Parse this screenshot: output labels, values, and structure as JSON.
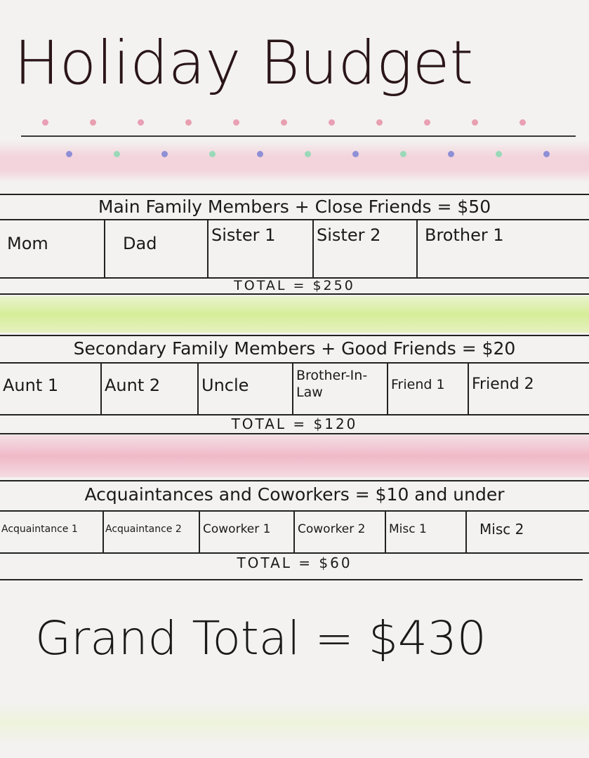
{
  "title": "Holiday Budget",
  "colors": {
    "ink": "#1a1a1a",
    "title_ink": "#2a1518",
    "pink_band": "#f4c9d4",
    "green_band": "#d9ef9a",
    "paper": "#f3f2f0"
  },
  "sections": [
    {
      "header": "Main Family Members + Close Friends = $50",
      "cells": [
        "Mom",
        "Dad",
        "Sister 1",
        "Sister 2",
        "Brother 1"
      ],
      "total": "TOTAL = $250"
    },
    {
      "header": "Secondary Family Members + Good Friends = $20",
      "cells": [
        "Aunt 1",
        "Aunt 2",
        "Uncle",
        "Brother-In-Law",
        "Friend 1",
        "Friend 2"
      ],
      "total": "TOTAL = $120"
    },
    {
      "header": "Acquaintances and Coworkers = $10 and under",
      "cells": [
        "Acquaintance 1",
        "Acquaintance 2",
        "Coworker 1",
        "Coworker 2",
        "Misc 1",
        "Misc 2"
      ],
      "total": "TOTAL = $60"
    }
  ],
  "grand_total": "Grand Total = $430"
}
